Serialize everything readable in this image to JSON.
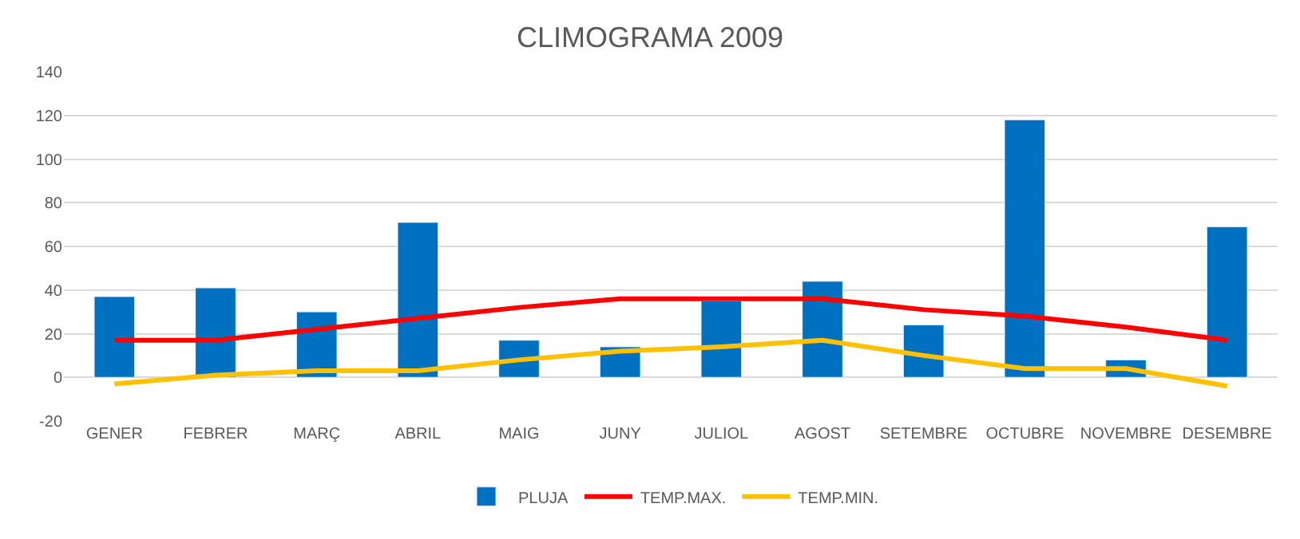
{
  "chart_data": {
    "type": "bar",
    "title": "CLIMOGRAMA 2009",
    "categories": [
      "GENER",
      "FEBRER",
      "MARÇ",
      "ABRIL",
      "MAIG",
      "JUNY",
      "JULIOL",
      "AGOST",
      "SETEMBRE",
      "OCTUBRE",
      "NOVEMBRE",
      "DESEMBRE"
    ],
    "series": [
      {
        "name": "PLUJA",
        "color": "#0070c0",
        "values": [
          37,
          41,
          30,
          71,
          17,
          14,
          35,
          44,
          24,
          118,
          8,
          69
        ]
      },
      {
        "name": "TEMP.MAX.",
        "type": "line",
        "color": "#ff0000",
        "values": [
          17,
          17,
          22,
          27,
          32,
          36,
          36,
          36,
          31,
          28,
          23,
          17
        ]
      },
      {
        "name": "TEMP.MIN.",
        "type": "line",
        "color": "#ffc000",
        "values": [
          -3,
          1,
          3,
          3,
          8,
          12,
          14,
          17,
          10,
          4,
          4,
          -4
        ]
      }
    ],
    "ylim": [
      -20,
      140
    ],
    "yticks": [
      -20,
      0,
      20,
      40,
      60,
      80,
      100,
      120,
      140
    ],
    "grid": "y",
    "legend": "bottom",
    "marker": "none",
    "line_style": "solid"
  }
}
